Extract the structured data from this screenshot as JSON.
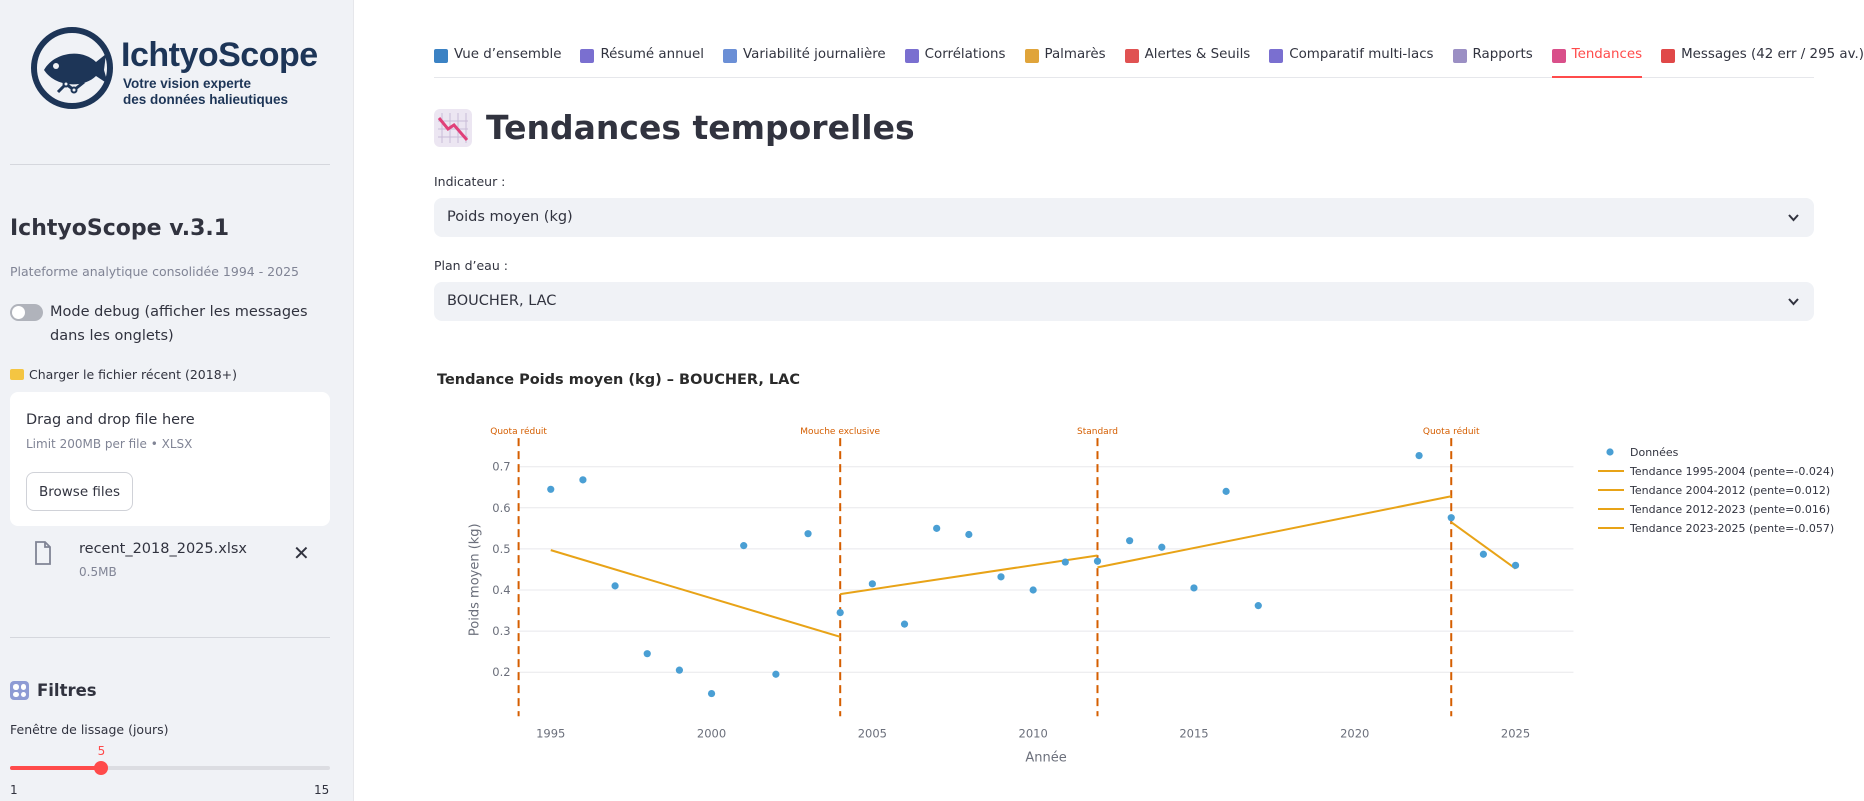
{
  "sidebar": {
    "logo": {
      "name": "IchtyoScope",
      "tagline1": "Votre vision experte",
      "tagline2": "des données halieutiques"
    },
    "title": "IchtyoScope v.3.1",
    "subtitle": "Plateforme analytique consolidée 1994 - 2025",
    "debug_toggle": {
      "label": "Mode debug (afficher les messages dans les onglets)",
      "on": false
    },
    "load_recent": {
      "label": "Charger le fichier récent (2018+)",
      "icon": "folder-icon"
    },
    "uploader": {
      "drag_text": "Drag and drop file here",
      "limit_text": "Limit 200MB per file • XLSX",
      "button_label": "Browse files"
    },
    "file": {
      "name": "recent_2018_2025.xlsx",
      "size": "0.5MB"
    },
    "filters": {
      "title": "Filtres"
    },
    "slider": {
      "label": "Fenêtre de lissage (jours)",
      "value": 5,
      "min": 1,
      "max": 15,
      "value_text": "5",
      "min_text": "1",
      "max_text": "15"
    }
  },
  "tabs": [
    {
      "label": "Vue d’ensemble",
      "icon": "globe-icon",
      "active": false
    },
    {
      "label": "Résumé annuel",
      "icon": "bar-chart-icon",
      "active": false
    },
    {
      "label": "Variabilité journalière",
      "icon": "line-chart-icon",
      "active": false
    },
    {
      "label": "Corrélations",
      "icon": "bar-chart-icon",
      "active": false
    },
    {
      "label": "Palmarès",
      "icon": "medal-icon",
      "active": false
    },
    {
      "label": "Alertes & Seuils",
      "icon": "siren-icon",
      "active": false
    },
    {
      "label": "Comparatif multi-lacs",
      "icon": "bar-chart-icon",
      "active": false
    },
    {
      "label": "Rapports",
      "icon": "document-icon",
      "active": false
    },
    {
      "label": "Tendances",
      "icon": "trend-down-icon",
      "active": true
    },
    {
      "label": "Messages (42 err / 295 av.)",
      "icon": "pin-icon",
      "active": false
    }
  ],
  "page": {
    "title": "Tendances temporelles",
    "title_icon": "trend-down-icon",
    "indicator": {
      "label": "Indicateur :",
      "value": "Poids moyen (kg)"
    },
    "lake": {
      "label": "Plan d’eau :",
      "value": "BOUCHER, LAC"
    }
  },
  "colors": {
    "accent": "#ff4b4b",
    "points": "#4a9fd4",
    "trend": "#e8a317",
    "breaks": "#d55e00",
    "brand": "#1d3557"
  },
  "chart_data": {
    "type": "scatter",
    "title": "Tendance Poids moyen (kg) – BOUCHER, LAC",
    "xlabel": "Année",
    "ylabel": "Poids moyen (kg)",
    "xlim": [
      1994,
      2026.8
    ],
    "ylim": [
      0.1,
      0.75
    ],
    "xticks": [
      1995,
      2000,
      2005,
      2010,
      2015,
      2020,
      2025
    ],
    "yticks": [
      0.2,
      0.3,
      0.4,
      0.5,
      0.6,
      0.7
    ],
    "grid": true,
    "legend_position": "right",
    "points": {
      "name": "Données",
      "x": [
        1995,
        1996,
        1997,
        1998,
        1999,
        2000,
        2001,
        2002,
        2003,
        2004,
        2005,
        2006,
        2007,
        2008,
        2009,
        2010,
        2011,
        2012,
        2013,
        2014,
        2015,
        2016,
        2017,
        2022,
        2023,
        2024,
        2025
      ],
      "y": [
        0.645,
        0.668,
        0.41,
        0.245,
        0.205,
        0.148,
        0.508,
        0.195,
        0.537,
        0.345,
        0.415,
        0.317,
        0.55,
        0.535,
        0.432,
        0.4,
        0.468,
        0.47,
        0.52,
        0.504,
        0.405,
        0.64,
        0.362,
        0.727,
        0.576,
        0.487,
        0.46
      ]
    },
    "trends": [
      {
        "name": "Tendance 1995-2004 (pente=-0.024)",
        "x": [
          1995,
          2004
        ],
        "y": [
          0.497,
          0.286
        ]
      },
      {
        "name": "Tendance 2004-2012 (pente=0.012)",
        "x": [
          2004,
          2012
        ],
        "y": [
          0.39,
          0.484
        ]
      },
      {
        "name": "Tendance 2012-2023 (pente=0.016)",
        "x": [
          2012,
          2023
        ],
        "y": [
          0.455,
          0.628
        ]
      },
      {
        "name": "Tendance 2023-2025 (pente=-0.057)",
        "x": [
          2023,
          2025
        ],
        "y": [
          0.565,
          0.452
        ]
      }
    ],
    "breaks": [
      {
        "x": 1994,
        "label": "Quota réduit"
      },
      {
        "x": 2004,
        "label": "Mouche exclusive"
      },
      {
        "x": 2012,
        "label": "Standard"
      },
      {
        "x": 2023,
        "label": "Quota réduit"
      }
    ]
  }
}
